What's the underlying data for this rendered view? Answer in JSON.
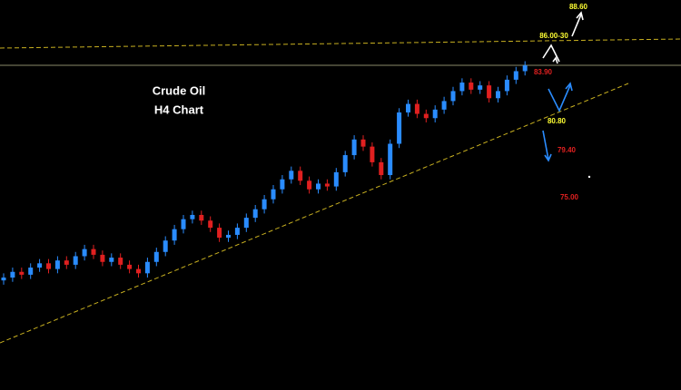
{
  "chart_data": {
    "type": "candlestick",
    "title": "Crude Oil",
    "subtitle": "H4 Chart",
    "up_color": "#2a8cff",
    "down_color": "#e02020",
    "ylim": [
      61.5,
      88.9
    ],
    "open": [
      69.2,
      69.4,
      69.8,
      69.6,
      70.1,
      70.4,
      70.0,
      70.6,
      70.3,
      70.9,
      71.4,
      71.0,
      70.5,
      70.8,
      70.3,
      70.0,
      69.7,
      70.5,
      71.2,
      72.0,
      72.8,
      73.5,
      73.8,
      73.4,
      72.9,
      72.2,
      72.4,
      72.9,
      73.6,
      74.2,
      74.9,
      75.6,
      76.3,
      76.9,
      76.2,
      75.6,
      76.0,
      75.8,
      76.8,
      78.0,
      79.1,
      78.6,
      77.5,
      76.6,
      78.8,
      81.0,
      81.6,
      80.9,
      80.6,
      81.2,
      81.8,
      82.5,
      83.1,
      82.6,
      82.9,
      82.0,
      82.5,
      83.3,
      83.9
    ],
    "high": [
      69.7,
      70.1,
      70.1,
      70.4,
      70.7,
      70.7,
      70.9,
      70.9,
      71.2,
      71.7,
      71.7,
      71.3,
      71.1,
      71.1,
      70.6,
      70.3,
      70.8,
      71.5,
      72.3,
      73.1,
      73.8,
      74.1,
      74.1,
      73.7,
      73.2,
      72.7,
      73.2,
      73.9,
      74.5,
      75.2,
      75.9,
      76.6,
      77.2,
      77.2,
      76.5,
      76.3,
      76.3,
      77.1,
      78.3,
      79.4,
      79.4,
      78.9,
      77.8,
      79.1,
      81.3,
      81.9,
      81.9,
      81.2,
      81.5,
      82.1,
      82.8,
      83.4,
      83.4,
      83.2,
      83.2,
      82.8,
      83.6,
      84.2,
      84.6
    ],
    "low": [
      68.9,
      69.1,
      69.3,
      69.3,
      69.8,
      69.7,
      69.7,
      70.0,
      70.0,
      70.6,
      70.7,
      70.2,
      70.2,
      70.0,
      69.7,
      69.4,
      69.4,
      70.2,
      70.9,
      71.7,
      72.5,
      73.2,
      73.1,
      72.6,
      71.9,
      71.9,
      72.1,
      72.6,
      73.3,
      73.9,
      74.6,
      75.3,
      76.0,
      75.9,
      75.3,
      75.3,
      75.5,
      75.5,
      76.5,
      77.7,
      78.3,
      77.2,
      76.3,
      76.3,
      78.5,
      80.7,
      80.6,
      80.3,
      80.3,
      80.9,
      81.5,
      82.2,
      82.3,
      82.3,
      81.7,
      81.7,
      82.2,
      83.0,
      83.6
    ],
    "close": [
      69.4,
      69.8,
      69.6,
      70.1,
      70.4,
      70.0,
      70.6,
      70.3,
      70.9,
      71.4,
      71.0,
      70.5,
      70.8,
      70.3,
      70.0,
      69.7,
      70.5,
      71.2,
      72.0,
      72.8,
      73.5,
      73.8,
      73.4,
      72.9,
      72.2,
      72.4,
      72.9,
      73.6,
      74.2,
      74.9,
      75.6,
      76.3,
      76.9,
      76.2,
      75.6,
      76.0,
      75.8,
      76.8,
      78.0,
      79.1,
      78.6,
      77.5,
      76.6,
      78.8,
      81.0,
      81.6,
      80.9,
      80.6,
      81.2,
      81.8,
      82.5,
      83.1,
      82.6,
      82.9,
      82.0,
      82.5,
      83.3,
      83.9,
      84.3
    ],
    "annotations": [
      {
        "text": "88.60",
        "color": "#ffff33"
      },
      {
        "text": "86.00-30",
        "color": "#ffff33"
      },
      {
        "text": "83.90",
        "color": "#e02020"
      },
      {
        "text": "80.80",
        "color": "#ffff33"
      },
      {
        "text": "79.40",
        "color": "#e02020"
      },
      {
        "text": "75.00",
        "color": "#e02020"
      }
    ]
  }
}
